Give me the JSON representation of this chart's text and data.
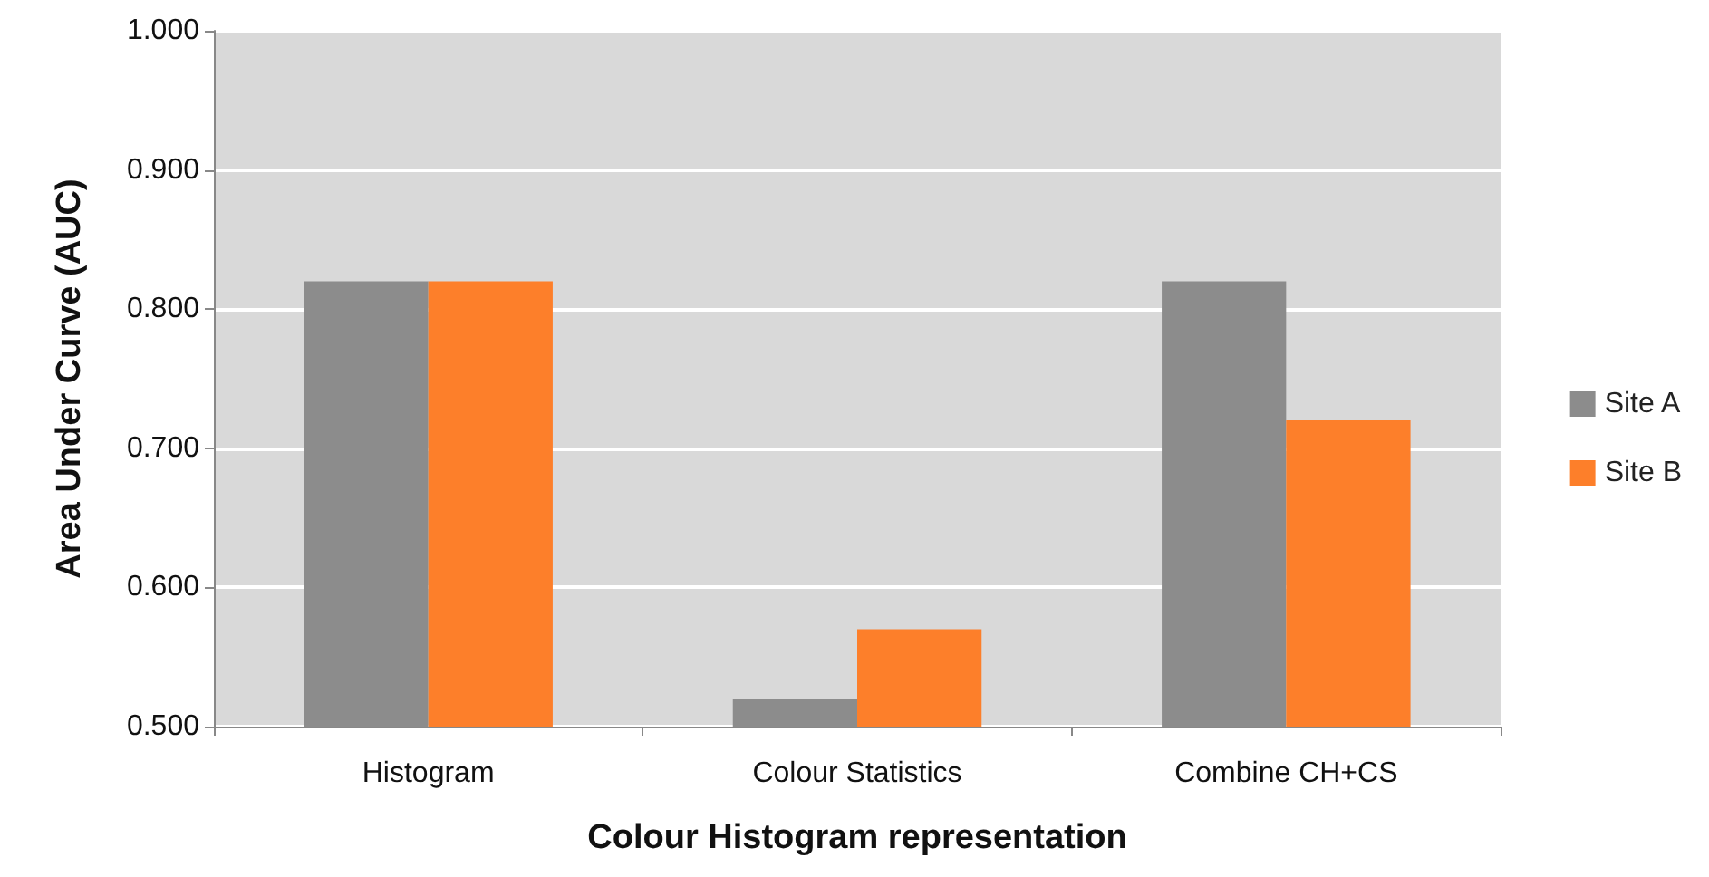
{
  "chart_data": {
    "type": "bar",
    "xlabel": "Colour Histogram representation",
    "ylabel": "Area Under Curve (AUC)",
    "categories": [
      "Histogram",
      "Colour Statistics",
      "Combine CH+CS"
    ],
    "series": [
      {
        "name": "Site A",
        "color": "#8c8c8c",
        "values": [
          0.82,
          0.52,
          0.82
        ]
      },
      {
        "name": "Site B",
        "color": "#fd7f2a",
        "values": [
          0.82,
          0.57,
          0.72
        ]
      }
    ],
    "ylim": [
      0.5,
      1.0
    ],
    "yticks": [
      {
        "value": 0.5,
        "label": "0.500"
      },
      {
        "value": 0.6,
        "label": "0.600"
      },
      {
        "value": 0.7,
        "label": "0.700"
      },
      {
        "value": 0.8,
        "label": "0.800"
      },
      {
        "value": 0.9,
        "label": "0.900"
      },
      {
        "value": 1.0,
        "label": "1.000"
      }
    ],
    "grid": "y",
    "legend": "right"
  }
}
